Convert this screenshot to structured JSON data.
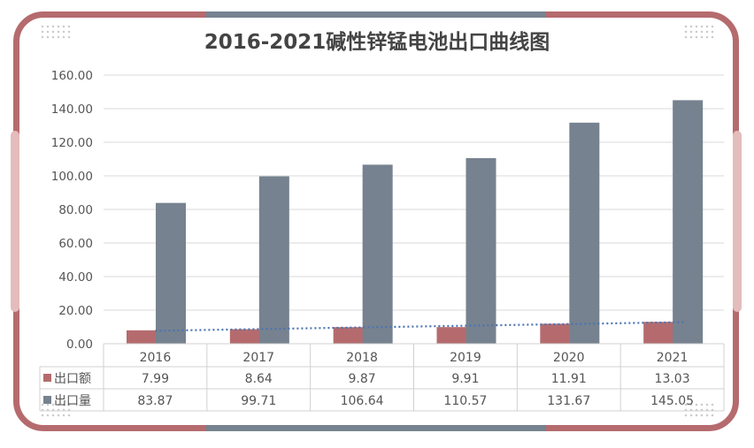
{
  "chart_data": {
    "type": "bar",
    "title": "2016-2021碱性锌锰电池出口曲线图",
    "categories": [
      "2016",
      "2017",
      "2018",
      "2019",
      "2020",
      "2021"
    ],
    "series": [
      {
        "name": "出口额",
        "values": [
          7.99,
          8.64,
          9.87,
          9.91,
          11.91,
          13.03
        ],
        "color": "#b56b6e",
        "labels": [
          "7.99",
          "8.64",
          "9.87",
          "9.91",
          "11.91",
          "13.03"
        ]
      },
      {
        "name": "出口量",
        "values": [
          83.87,
          99.71,
          106.64,
          110.57,
          131.67,
          145.05
        ],
        "color": "#76828f",
        "labels": [
          "83.87",
          "99.71",
          "106.64",
          "110.57",
          "131.67",
          "145.05"
        ]
      }
    ],
    "trendline": {
      "series": "出口额",
      "type": "linear",
      "style": "dotted",
      "color": "#4a74b0"
    },
    "ylim": [
      0,
      160
    ],
    "yticks": [
      "0.00",
      "20.00",
      "40.00",
      "60.00",
      "80.00",
      "100.00",
      "120.00",
      "140.00",
      "160.00"
    ],
    "grid": true,
    "legend": "data-table"
  }
}
